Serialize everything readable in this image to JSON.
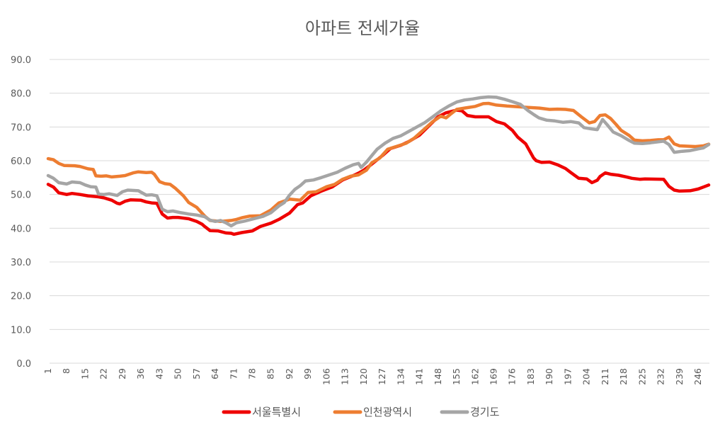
{
  "chart_data": {
    "type": "line",
    "title": "아파트 전세가율",
    "xlabel": "",
    "ylabel": "",
    "ylim": [
      0,
      90
    ],
    "yticks": [
      "0.0",
      "10.0",
      "20.0",
      "30.0",
      "40.0",
      "50.0",
      "60.0",
      "70.0",
      "80.0",
      "90.0"
    ],
    "xlim": [
      1,
      250
    ],
    "xticks": [
      1,
      8,
      15,
      22,
      29,
      36,
      43,
      50,
      57,
      64,
      71,
      78,
      85,
      92,
      99,
      106,
      113,
      120,
      127,
      134,
      141,
      148,
      155,
      162,
      169,
      176,
      183,
      190,
      197,
      204,
      211,
      218,
      225,
      232,
      239,
      246
    ],
    "grid": true,
    "legend": "bottom",
    "series": [
      {
        "name": "서울특별시",
        "color": "#ee0000",
        "points": [
          [
            1,
            53.0
          ],
          [
            3,
            52.2
          ],
          [
            5,
            50.5
          ],
          [
            8,
            50.0
          ],
          [
            10,
            50.3
          ],
          [
            13,
            50.0
          ],
          [
            16,
            49.6
          ],
          [
            20,
            49.3
          ],
          [
            22,
            49.0
          ],
          [
            25,
            48.3
          ],
          [
            27,
            47.4
          ],
          [
            28,
            47.2
          ],
          [
            30,
            48.0
          ],
          [
            32,
            48.4
          ],
          [
            36,
            48.3
          ],
          [
            38,
            47.8
          ],
          [
            40,
            47.5
          ],
          [
            42,
            47.4
          ],
          [
            44,
            44.2
          ],
          [
            46,
            43.0
          ],
          [
            48,
            43.2
          ],
          [
            50,
            43.2
          ],
          [
            54,
            42.8
          ],
          [
            57,
            42.0
          ],
          [
            59,
            41.2
          ],
          [
            60,
            40.5
          ],
          [
            62,
            39.3
          ],
          [
            65,
            39.2
          ],
          [
            68,
            38.6
          ],
          [
            70,
            38.5
          ],
          [
            71,
            38.2
          ],
          [
            74,
            38.7
          ],
          [
            78,
            39.2
          ],
          [
            81,
            40.5
          ],
          [
            85,
            41.5
          ],
          [
            88,
            42.6
          ],
          [
            92,
            44.5
          ],
          [
            95,
            47.0
          ],
          [
            97,
            47.5
          ],
          [
            100,
            49.6
          ],
          [
            104,
            51.0
          ],
          [
            108,
            52.2
          ],
          [
            112,
            54.3
          ],
          [
            116,
            55.6
          ],
          [
            118,
            56.3
          ],
          [
            120,
            57.2
          ],
          [
            123,
            59.0
          ],
          [
            127,
            61.5
          ],
          [
            130,
            63.6
          ],
          [
            134,
            64.6
          ],
          [
            137,
            65.7
          ],
          [
            141,
            67.6
          ],
          [
            145,
            70.7
          ],
          [
            148,
            73.0
          ],
          [
            151,
            74.2
          ],
          [
            155,
            75.0
          ],
          [
            157,
            74.8
          ],
          [
            159,
            73.4
          ],
          [
            162,
            73.0
          ],
          [
            165,
            73.0
          ],
          [
            167,
            73.0
          ],
          [
            170,
            71.6
          ],
          [
            173,
            70.9
          ],
          [
            176,
            69.0
          ],
          [
            178,
            67.0
          ],
          [
            181,
            65.0
          ],
          [
            184,
            60.8
          ],
          [
            185,
            60.0
          ],
          [
            187,
            59.5
          ],
          [
            190,
            59.6
          ],
          [
            193,
            58.8
          ],
          [
            196,
            57.7
          ],
          [
            198,
            56.5
          ],
          [
            201,
            54.8
          ],
          [
            204,
            54.6
          ],
          [
            206,
            53.5
          ],
          [
            208,
            54.2
          ],
          [
            209,
            55.3
          ],
          [
            211,
            56.4
          ],
          [
            213,
            56.0
          ],
          [
            216,
            55.7
          ],
          [
            219,
            55.2
          ],
          [
            221,
            54.8
          ],
          [
            224,
            54.5
          ],
          [
            226,
            54.6
          ],
          [
            233,
            54.5
          ],
          [
            235,
            52.4
          ],
          [
            237,
            51.3
          ],
          [
            239,
            51.0
          ],
          [
            243,
            51.1
          ],
          [
            246,
            51.6
          ],
          [
            248,
            52.2
          ],
          [
            250,
            52.8
          ]
        ]
      },
      {
        "name": "인천광역시",
        "color": "#ed7d31",
        "points": [
          [
            1,
            60.6
          ],
          [
            3,
            60.3
          ],
          [
            5,
            59.2
          ],
          [
            7,
            58.6
          ],
          [
            11,
            58.5
          ],
          [
            13,
            58.3
          ],
          [
            16,
            57.6
          ],
          [
            18,
            57.4
          ],
          [
            19,
            55.5
          ],
          [
            21,
            55.4
          ],
          [
            23,
            55.5
          ],
          [
            25,
            55.2
          ],
          [
            28,
            55.4
          ],
          [
            30,
            55.6
          ],
          [
            33,
            56.4
          ],
          [
            35,
            56.7
          ],
          [
            38,
            56.5
          ],
          [
            40,
            56.6
          ],
          [
            41,
            56.0
          ],
          [
            43,
            53.8
          ],
          [
            45,
            53.2
          ],
          [
            47,
            53.0
          ],
          [
            49,
            51.8
          ],
          [
            52,
            49.6
          ],
          [
            54,
            47.6
          ],
          [
            57,
            46.2
          ],
          [
            60,
            43.6
          ],
          [
            62,
            42.3
          ],
          [
            66,
            42.0
          ],
          [
            70,
            42.3
          ],
          [
            72,
            42.6
          ],
          [
            74,
            43.1
          ],
          [
            77,
            43.6
          ],
          [
            81,
            43.7
          ],
          [
            85,
            45.4
          ],
          [
            88,
            47.5
          ],
          [
            92,
            48.6
          ],
          [
            96,
            48.3
          ],
          [
            99,
            50.6
          ],
          [
            102,
            50.8
          ],
          [
            106,
            52.3
          ],
          [
            109,
            53.0
          ],
          [
            112,
            54.5
          ],
          [
            115,
            55.4
          ],
          [
            118,
            55.8
          ],
          [
            121,
            57.2
          ],
          [
            123,
            59.4
          ],
          [
            126,
            60.8
          ],
          [
            129,
            63.4
          ],
          [
            133,
            64.4
          ],
          [
            136,
            65.2
          ],
          [
            139,
            66.7
          ],
          [
            143,
            69.5
          ],
          [
            146,
            71.6
          ],
          [
            149,
            73.2
          ],
          [
            151,
            72.7
          ],
          [
            153,
            74.0
          ],
          [
            155,
            75.2
          ],
          [
            158,
            75.6
          ],
          [
            162,
            76.1
          ],
          [
            165,
            76.9
          ],
          [
            167,
            77.0
          ],
          [
            170,
            76.5
          ],
          [
            174,
            76.2
          ],
          [
            178,
            76.0
          ],
          [
            182,
            75.8
          ],
          [
            186,
            75.6
          ],
          [
            190,
            75.2
          ],
          [
            193,
            75.3
          ],
          [
            196,
            75.2
          ],
          [
            199,
            74.9
          ],
          [
            202,
            73.0
          ],
          [
            205,
            71.2
          ],
          [
            207,
            71.6
          ],
          [
            209,
            73.4
          ],
          [
            211,
            73.6
          ],
          [
            213,
            72.5
          ],
          [
            215,
            70.8
          ],
          [
            217,
            69.0
          ],
          [
            220,
            67.5
          ],
          [
            222,
            66.1
          ],
          [
            225,
            65.9
          ],
          [
            228,
            66.0
          ],
          [
            231,
            66.2
          ],
          [
            233,
            66.2
          ],
          [
            235,
            67.0
          ],
          [
            237,
            65.0
          ],
          [
            239,
            64.4
          ],
          [
            242,
            64.3
          ],
          [
            245,
            64.2
          ],
          [
            248,
            64.4
          ],
          [
            250,
            64.9
          ]
        ]
      },
      {
        "name": "경기도",
        "color": "#a5a5a5",
        "points": [
          [
            1,
            55.6
          ],
          [
            3,
            54.8
          ],
          [
            5,
            53.5
          ],
          [
            8,
            53.1
          ],
          [
            10,
            53.7
          ],
          [
            13,
            53.5
          ],
          [
            15,
            52.8
          ],
          [
            17,
            52.3
          ],
          [
            19,
            52.2
          ],
          [
            20,
            50.1
          ],
          [
            22,
            50.0
          ],
          [
            24,
            50.2
          ],
          [
            27,
            49.7
          ],
          [
            29,
            50.8
          ],
          [
            31,
            51.3
          ],
          [
            35,
            51.1
          ],
          [
            38,
            49.8
          ],
          [
            40,
            49.9
          ],
          [
            42,
            49.6
          ],
          [
            44,
            45.6
          ],
          [
            46,
            44.9
          ],
          [
            48,
            45.1
          ],
          [
            51,
            44.6
          ],
          [
            54,
            44.2
          ],
          [
            57,
            43.9
          ],
          [
            60,
            43.4
          ],
          [
            62,
            42.4
          ],
          [
            64,
            42.0
          ],
          [
            66,
            42.3
          ],
          [
            68,
            41.6
          ],
          [
            70,
            40.7
          ],
          [
            72,
            41.6
          ],
          [
            75,
            42.1
          ],
          [
            78,
            42.7
          ],
          [
            82,
            43.5
          ],
          [
            85,
            44.6
          ],
          [
            88,
            46.6
          ],
          [
            90,
            47.6
          ],
          [
            92,
            49.8
          ],
          [
            94,
            51.5
          ],
          [
            96,
            52.6
          ],
          [
            98,
            54.0
          ],
          [
            101,
            54.3
          ],
          [
            104,
            55.0
          ],
          [
            107,
            55.8
          ],
          [
            110,
            56.6
          ],
          [
            113,
            57.8
          ],
          [
            116,
            58.8
          ],
          [
            118,
            59.2
          ],
          [
            119,
            58.0
          ],
          [
            121,
            59.6
          ],
          [
            123,
            61.5
          ],
          [
            125,
            63.4
          ],
          [
            128,
            65.2
          ],
          [
            131,
            66.6
          ],
          [
            134,
            67.4
          ],
          [
            137,
            68.7
          ],
          [
            140,
            70.0
          ],
          [
            143,
            71.3
          ],
          [
            146,
            73.0
          ],
          [
            149,
            74.8
          ],
          [
            152,
            76.2
          ],
          [
            155,
            77.4
          ],
          [
            158,
            78.0
          ],
          [
            161,
            78.3
          ],
          [
            164,
            78.7
          ],
          [
            167,
            78.9
          ],
          [
            170,
            78.8
          ],
          [
            173,
            78.2
          ],
          [
            176,
            77.5
          ],
          [
            179,
            76.7
          ],
          [
            182,
            74.8
          ],
          [
            184,
            73.7
          ],
          [
            186,
            72.7
          ],
          [
            189,
            72.0
          ],
          [
            192,
            71.8
          ],
          [
            195,
            71.4
          ],
          [
            198,
            71.6
          ],
          [
            201,
            71.2
          ],
          [
            203,
            69.8
          ],
          [
            206,
            69.4
          ],
          [
            208,
            69.2
          ],
          [
            210,
            72.2
          ],
          [
            212,
            70.4
          ],
          [
            214,
            68.5
          ],
          [
            217,
            67.4
          ],
          [
            220,
            66.0
          ],
          [
            222,
            65.2
          ],
          [
            225,
            65.1
          ],
          [
            228,
            65.3
          ],
          [
            231,
            65.6
          ],
          [
            233,
            65.8
          ],
          [
            235,
            64.8
          ],
          [
            237,
            62.5
          ],
          [
            240,
            62.8
          ],
          [
            243,
            63.0
          ],
          [
            246,
            63.5
          ],
          [
            248,
            63.8
          ],
          [
            250,
            64.8
          ]
        ]
      }
    ]
  }
}
